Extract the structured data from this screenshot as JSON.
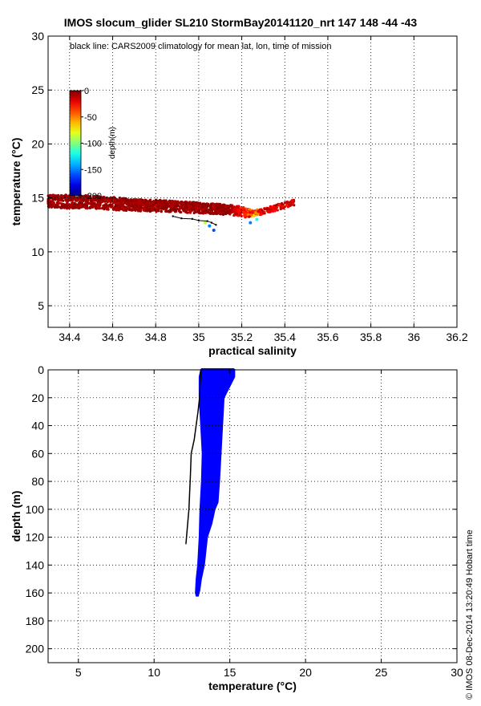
{
  "title": "IMOS slocum_glider SL210 StormBay20141120_nrt 147  148  -44  -43",
  "credit": "© IMOS 08-Dec-2014 13:20:49 Hobart time",
  "chart_data": [
    {
      "type": "scatter",
      "annotation": "black line: CARS2009 climatology for mean lat, lon, time of mission",
      "xlabel": "practical salinity",
      "ylabel": "temperature (°C)",
      "xlim": [
        34.3,
        36.2
      ],
      "ylim": [
        3,
        30
      ],
      "xticks": [
        34.4,
        34.6,
        34.8,
        35,
        35.2,
        35.4,
        35.6,
        35.8,
        36,
        36.2
      ],
      "xtick_labels": [
        "34.4",
        "34.6",
        "34.8",
        "35",
        "35.2",
        "35.4",
        "35.6",
        "35.8",
        "36",
        "36.2"
      ],
      "yticks": [
        5,
        10,
        15,
        20,
        25,
        30
      ],
      "ytick_labels": [
        "5",
        "10",
        "15",
        "20",
        "25",
        "30"
      ],
      "grid": true,
      "colorbar": {
        "label": "depth(m)",
        "range": [
          -200,
          0
        ],
        "ticks": [
          0,
          -50,
          -100,
          -150,
          -200
        ],
        "tick_labels": [
          "0",
          "-50",
          "-100",
          "-150",
          "-200"
        ]
      },
      "observations": {
        "color_by": "depth",
        "bands": [
          {
            "salinity": [
              34.3,
              34.38,
              34.5,
              34.6,
              34.7,
              34.8,
              34.9,
              35.0,
              35.1,
              35.18,
              35.22,
              35.3,
              35.38,
              35.45
            ],
            "temperature": [
              14.4,
              14.3,
              14.3,
              14.15,
              14.05,
              14.0,
              13.95,
              13.85,
              13.75,
              13.6,
              13.45,
              13.75,
              14.2,
              14.6
            ]
          },
          {
            "salinity": [
              34.3,
              34.4,
              34.5,
              34.6,
              34.7,
              34.8,
              34.9,
              35.0,
              35.1,
              35.2,
              35.25
            ],
            "temperature": [
              15.0,
              15.0,
              14.95,
              14.8,
              14.6,
              14.55,
              14.45,
              14.3,
              14.15,
              13.95,
              13.6
            ]
          }
        ],
        "deep_points": [
          {
            "salinity": 35.05,
            "temperature": 12.4,
            "depth": -150
          },
          {
            "salinity": 35.07,
            "temperature": 12.0,
            "depth": -160
          },
          {
            "salinity": 35.24,
            "temperature": 12.7,
            "depth": -150
          },
          {
            "salinity": 35.27,
            "temperature": 13.0,
            "depth": -120
          },
          {
            "salinity": 35.03,
            "temperature": 12.7,
            "depth": -90
          }
        ]
      },
      "climatology": {
        "color": "#000000",
        "salinity": [
          34.88,
          34.92,
          34.97,
          35.0,
          35.04,
          35.06,
          35.08
        ],
        "temperature": [
          13.3,
          13.1,
          13.05,
          12.9,
          12.85,
          12.7,
          12.5
        ]
      }
    },
    {
      "type": "scatter",
      "xlabel": "temperature (°C)",
      "ylabel": "depth (m)",
      "xlim": [
        3,
        30
      ],
      "ylim": [
        210,
        0
      ],
      "xticks": [
        5,
        10,
        15,
        20,
        25,
        30
      ],
      "xtick_labels": [
        "5",
        "10",
        "15",
        "20",
        "25",
        "30"
      ],
      "yticks": [
        0,
        20,
        40,
        60,
        80,
        100,
        120,
        140,
        160,
        180,
        200
      ],
      "ytick_labels": [
        "0",
        "20",
        "40",
        "60",
        "80",
        "100",
        "120",
        "140",
        "160",
        "180",
        "200"
      ],
      "grid": true,
      "observations": {
        "color": "#0000ff",
        "left_edge": {
          "depth": [
            0,
            5,
            20,
            40,
            60,
            80,
            100,
            120,
            140,
            150,
            160,
            162
          ],
          "temperature": [
            13.1,
            13.0,
            13.0,
            13.1,
            13.2,
            13.15,
            13.05,
            13.0,
            12.9,
            12.8,
            12.75,
            12.8
          ]
        },
        "right_edge": {
          "depth": [
            0,
            5,
            20,
            40,
            60,
            80,
            95,
            100,
            110,
            120,
            140,
            150,
            158,
            162
          ],
          "temperature": [
            15.3,
            15.3,
            14.6,
            14.5,
            14.4,
            14.3,
            14.2,
            14.0,
            13.8,
            13.5,
            13.3,
            13.1,
            13.0,
            12.9
          ]
        },
        "surface_temperature_range": [
          13.1,
          15.3
        ]
      },
      "climatology": {
        "color": "#000000",
        "depth": [
          0,
          10,
          20,
          30,
          50,
          60,
          75,
          100,
          125
        ],
        "temperature": [
          13.1,
          13.05,
          13.0,
          12.9,
          12.65,
          12.45,
          12.4,
          12.3,
          12.1
        ]
      }
    }
  ]
}
